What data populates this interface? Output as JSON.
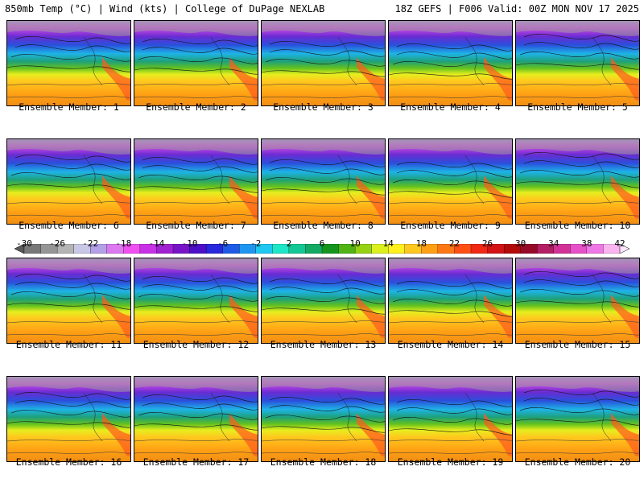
{
  "header": {
    "left": "850mb Temp (°C) | Wind (kts) | College of DuPage NEXLAB",
    "right": "18Z GEFS | F006 Valid: 00Z MON NOV 17 2025"
  },
  "members": [
    "Ensemble Member: 1",
    "Ensemble Member: 2",
    "Ensemble Member: 3",
    "Ensemble Member: 4",
    "Ensemble Member: 5",
    "Ensemble Member: 6",
    "Ensemble Member: 7",
    "Ensemble Member: 8",
    "Ensemble Member: 9",
    "Ensemble Member: 10",
    "Ensemble Member: 11",
    "Ensemble Member: 12",
    "Ensemble Member: 13",
    "Ensemble Member: 14",
    "Ensemble Member: 15",
    "Ensemble Member: 16",
    "Ensemble Member: 17",
    "Ensemble Member: 18",
    "Ensemble Member: 19",
    "Ensemble Member: 20"
  ],
  "colorbar": {
    "labels": [
      "-30",
      "-26",
      "-22",
      "-18",
      "-14",
      "-10",
      "-6",
      "-2",
      "2",
      "6",
      "10",
      "14",
      "18",
      "22",
      "26",
      "30",
      "34",
      "38",
      "42"
    ],
    "colors": [
      "#5a5a5a",
      "#787878",
      "#969696",
      "#b4b4b4",
      "#c8c8e6",
      "#b4a0e6",
      "#dc78f0",
      "#f050f0",
      "#c832e6",
      "#a020d2",
      "#7814c8",
      "#4b0fc8",
      "#2828dc",
      "#1e5ae6",
      "#1e96f0",
      "#1ec8f0",
      "#1ee6c8",
      "#14c896",
      "#14aa64",
      "#14961e",
      "#50b414",
      "#96d214",
      "#dcf01e",
      "#fff01e",
      "#ffc81e",
      "#ffa014",
      "#ff7814",
      "#ff5014",
      "#f02814",
      "#d21414",
      "#b40a0a",
      "#960a28",
      "#b41e64",
      "#d23296",
      "#e650c8",
      "#f078e6",
      "#fab4f0",
      "#ffe6ff"
    ]
  }
}
